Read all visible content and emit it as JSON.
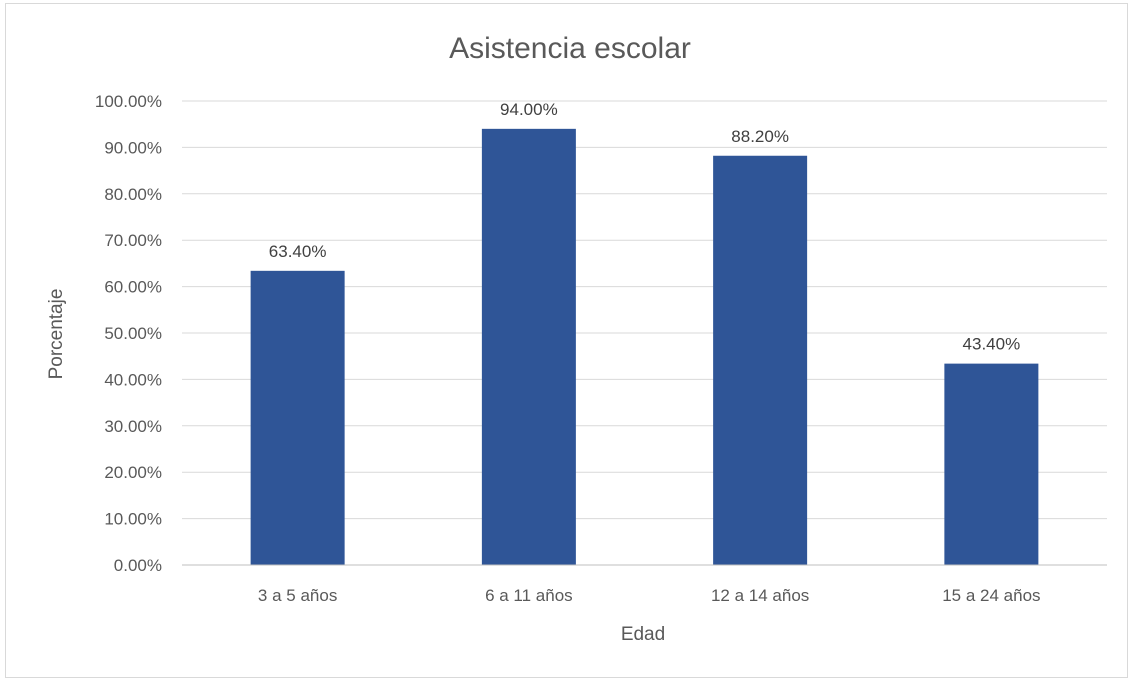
{
  "chart_data": {
    "type": "bar",
    "title": "Asistencia escolar",
    "xlabel": "Edad",
    "ylabel": "Porcentaje",
    "categories": [
      "3 a 5 años",
      "6 a 11 años",
      "12 a 14 años",
      "15 a 24 años"
    ],
    "values": [
      63.4,
      94.0,
      88.2,
      43.4
    ],
    "data_labels": [
      "63.40%",
      "94.00%",
      "88.20%",
      "43.40%"
    ],
    "ylim": [
      0,
      100
    ],
    "yticks": [
      0,
      10,
      20,
      30,
      40,
      50,
      60,
      70,
      80,
      90,
      100
    ],
    "ytick_labels": [
      "0.00%",
      "10.00%",
      "20.00%",
      "30.00%",
      "40.00%",
      "50.00%",
      "60.00%",
      "70.00%",
      "80.00%",
      "90.00%",
      "100.00%"
    ],
    "grid": true,
    "legend": "none",
    "bar_color": "#2f5597"
  }
}
